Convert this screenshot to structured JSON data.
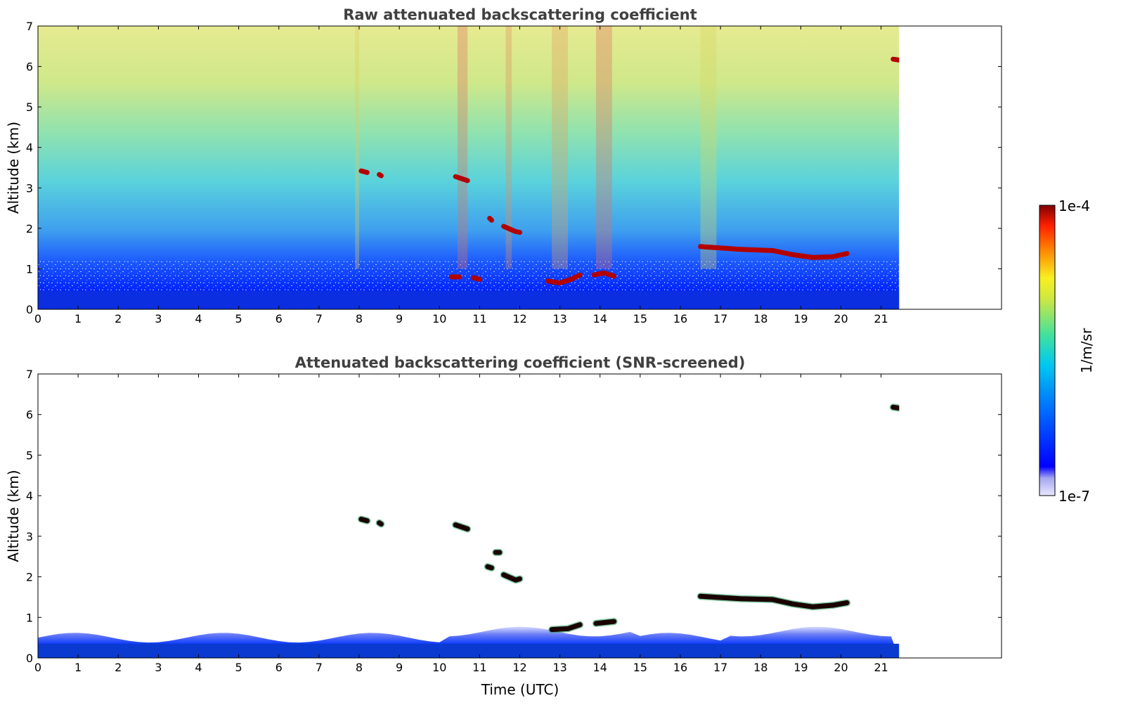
{
  "chart_data": [
    {
      "type": "heatmap",
      "title": "Raw attenuated backscattering coefficient",
      "xlabel": "",
      "ylabel": "Altitude (km)",
      "xlim": [
        0,
        24
      ],
      "ylim": [
        0,
        7
      ],
      "x_ticks": [
        0,
        1,
        2,
        3,
        4,
        5,
        6,
        7,
        8,
        9,
        10,
        11,
        12,
        13,
        14,
        15,
        16,
        17,
        18,
        19,
        20,
        21
      ],
      "y_ticks": [
        0,
        1,
        2,
        3,
        4,
        5,
        6,
        7
      ],
      "data_end_time": 21.45,
      "features": [
        {
          "kind": "cloud-segment",
          "points": [
            [
              16.5,
              1.55
            ],
            [
              17.5,
              1.48
            ],
            [
              18.3,
              1.45
            ],
            [
              18.8,
              1.35
            ],
            [
              19.3,
              1.28
            ],
            [
              19.8,
              1.3
            ],
            [
              20.15,
              1.38
            ]
          ]
        },
        {
          "kind": "cloud-segment",
          "points": [
            [
              8.05,
              3.42
            ],
            [
              8.2,
              3.38
            ]
          ]
        },
        {
          "kind": "cloud-segment",
          "points": [
            [
              8.5,
              3.33
            ],
            [
              8.55,
              3.3
            ]
          ]
        },
        {
          "kind": "cloud-segment",
          "points": [
            [
              10.4,
              3.28
            ],
            [
              10.7,
              3.18
            ]
          ]
        },
        {
          "kind": "cloud-segment",
          "points": [
            [
              11.25,
              2.25
            ],
            [
              11.3,
              2.2
            ]
          ]
        },
        {
          "kind": "cloud-segment",
          "points": [
            [
              11.6,
              2.05
            ],
            [
              11.9,
              1.92
            ],
            [
              12.0,
              1.9
            ]
          ]
        },
        {
          "kind": "cloud-segment",
          "points": [
            [
              21.3,
              6.18
            ],
            [
              21.45,
              6.16
            ]
          ]
        },
        {
          "kind": "cloud-segment",
          "points": [
            [
              10.3,
              0.8
            ],
            [
              10.5,
              0.8
            ]
          ]
        },
        {
          "kind": "cloud-segment",
          "points": [
            [
              10.85,
              0.78
            ],
            [
              11.0,
              0.74
            ]
          ]
        },
        {
          "kind": "cloud-segment",
          "points": [
            [
              12.7,
              0.7
            ],
            [
              13.0,
              0.65
            ],
            [
              13.3,
              0.75
            ],
            [
              13.5,
              0.85
            ]
          ]
        },
        {
          "kind": "cloud-segment",
          "points": [
            [
              13.85,
              0.85
            ],
            [
              14.1,
              0.9
            ],
            [
              14.35,
              0.82
            ]
          ]
        }
      ],
      "colorbar": {
        "min_label": "1e-7",
        "max_label": "1e-4",
        "label": "1/m/sr"
      }
    },
    {
      "type": "heatmap",
      "title": "Attenuated backscattering coefficient (SNR-screened)",
      "xlabel": "Time (UTC)",
      "ylabel": "Altitude (km)",
      "xlim": [
        0,
        24
      ],
      "ylim": [
        0,
        7
      ],
      "x_ticks": [
        0,
        1,
        2,
        3,
        4,
        5,
        6,
        7,
        8,
        9,
        10,
        11,
        12,
        13,
        14,
        15,
        16,
        17,
        18,
        19,
        20,
        21
      ],
      "y_ticks": [
        0,
        1,
        2,
        3,
        4,
        5,
        6,
        7
      ],
      "data_end_time": 21.45,
      "features": [
        {
          "kind": "cloud-segment",
          "points": [
            [
              16.5,
              1.52
            ],
            [
              17.5,
              1.46
            ],
            [
              18.3,
              1.44
            ],
            [
              18.8,
              1.33
            ],
            [
              19.3,
              1.26
            ],
            [
              19.8,
              1.3
            ],
            [
              20.15,
              1.36
            ]
          ]
        },
        {
          "kind": "cloud-segment",
          "points": [
            [
              8.05,
              3.42
            ],
            [
              8.2,
              3.38
            ]
          ]
        },
        {
          "kind": "cloud-segment",
          "points": [
            [
              8.5,
              3.33
            ],
            [
              8.55,
              3.3
            ]
          ]
        },
        {
          "kind": "cloud-segment",
          "points": [
            [
              10.4,
              3.28
            ],
            [
              10.7,
              3.18
            ]
          ]
        },
        {
          "kind": "cloud-segment",
          "points": [
            [
              11.4,
              2.6
            ],
            [
              11.5,
              2.6
            ]
          ]
        },
        {
          "kind": "cloud-segment",
          "points": [
            [
              11.2,
              2.25
            ],
            [
              11.3,
              2.22
            ]
          ]
        },
        {
          "kind": "cloud-segment",
          "points": [
            [
              11.6,
              2.05
            ],
            [
              11.9,
              1.92
            ],
            [
              12.0,
              1.95
            ]
          ]
        },
        {
          "kind": "cloud-segment",
          "points": [
            [
              21.3,
              6.18
            ],
            [
              21.45,
              6.16
            ]
          ]
        },
        {
          "kind": "cloud-segment",
          "points": [
            [
              12.8,
              0.7
            ],
            [
              13.2,
              0.72
            ],
            [
              13.5,
              0.82
            ]
          ]
        },
        {
          "kind": "cloud-segment",
          "points": [
            [
              13.9,
              0.85
            ],
            [
              14.35,
              0.9
            ]
          ]
        }
      ],
      "colorbar": {
        "min_label": "1e-7",
        "max_label": "1e-4",
        "label": "1/m/sr"
      }
    }
  ],
  "colors": {
    "colormap": [
      "#e8e8ff",
      "#a6a6f0",
      "#0000ff",
      "#0058ff",
      "#00a8ff",
      "#00e0d0",
      "#7ee87e",
      "#e8e840",
      "#ff9000",
      "#ff2000",
      "#8b0000"
    ],
    "cloud": "#b30000",
    "cloud_dark": "#1a0000",
    "background": "#ffffff"
  }
}
